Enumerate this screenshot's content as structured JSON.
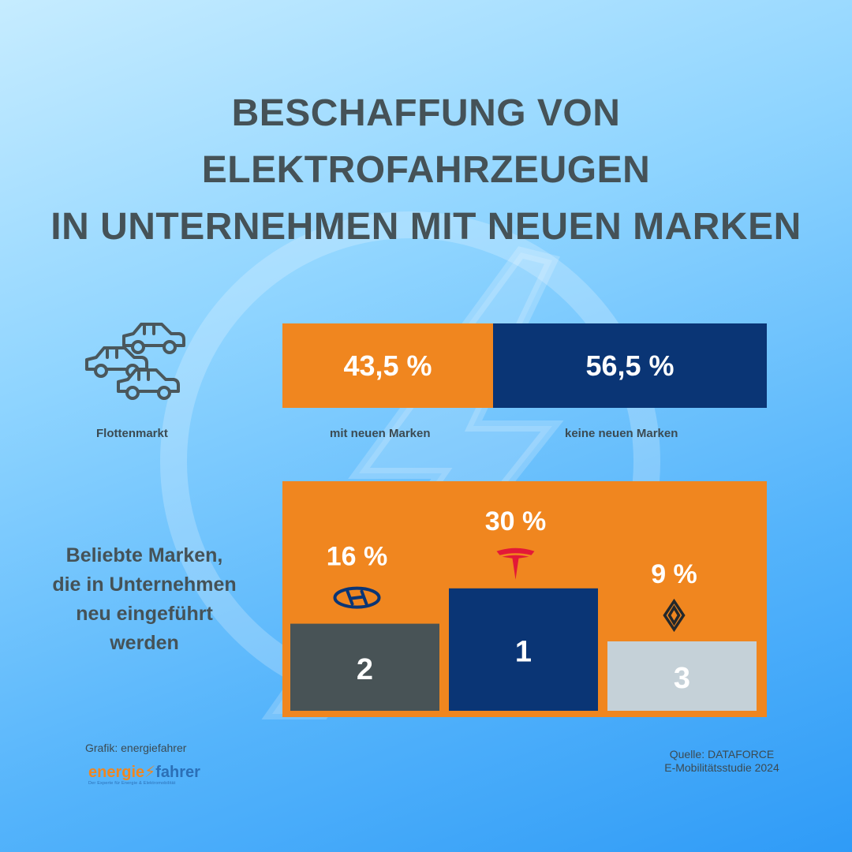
{
  "title_lines": [
    "BESCHAFFUNG VON",
    "ELEKTROFAHRZEUGEN",
    "IN UNTERNEHMEN MIT NEUEN MARKEN"
  ],
  "fleet": {
    "label": "Flottenmarkt",
    "icon": "cars-icon"
  },
  "chart_data": [
    {
      "type": "bar",
      "categories": [
        "mit neuen Marken",
        "keine neuen Marken"
      ],
      "values": [
        43.5,
        56.5
      ],
      "value_labels": [
        "43,5 %",
        "56,5 %"
      ],
      "colors": [
        "#f0861f",
        "#0a3575"
      ],
      "ylim": [
        0,
        100
      ]
    },
    {
      "type": "bar",
      "title": "Beliebte Marken, die in Unternehmen neu eingeführt werden",
      "categories": [
        "Hyundai",
        "Tesla",
        "Renault"
      ],
      "values": [
        16,
        30,
        9
      ],
      "value_labels": [
        "16 %",
        "30 %",
        "9 %"
      ],
      "ranks": [
        "2",
        "1",
        "3"
      ],
      "icons": [
        "hyundai-logo-icon",
        "tesla-logo-icon",
        "renault-logo-icon"
      ],
      "colors": [
        "#485356",
        "#0a3575",
        "#c5d1d8"
      ],
      "background": "#f0861f",
      "ylim": [
        0,
        30
      ]
    }
  ],
  "brands_heading_lines": [
    "Beliebte Marken,",
    "die in Unternehmen",
    "neu eingeführt",
    "werden"
  ],
  "credit": "Grafik: energiefahrer",
  "logo": {
    "part1": "energie",
    "part2": "fahrer",
    "tagline": "Der Experte für Energie & Elektromobilität"
  },
  "source_lines": [
    "Quelle: DATAFORCE",
    "E-Mobilitätsstudie 2024"
  ]
}
